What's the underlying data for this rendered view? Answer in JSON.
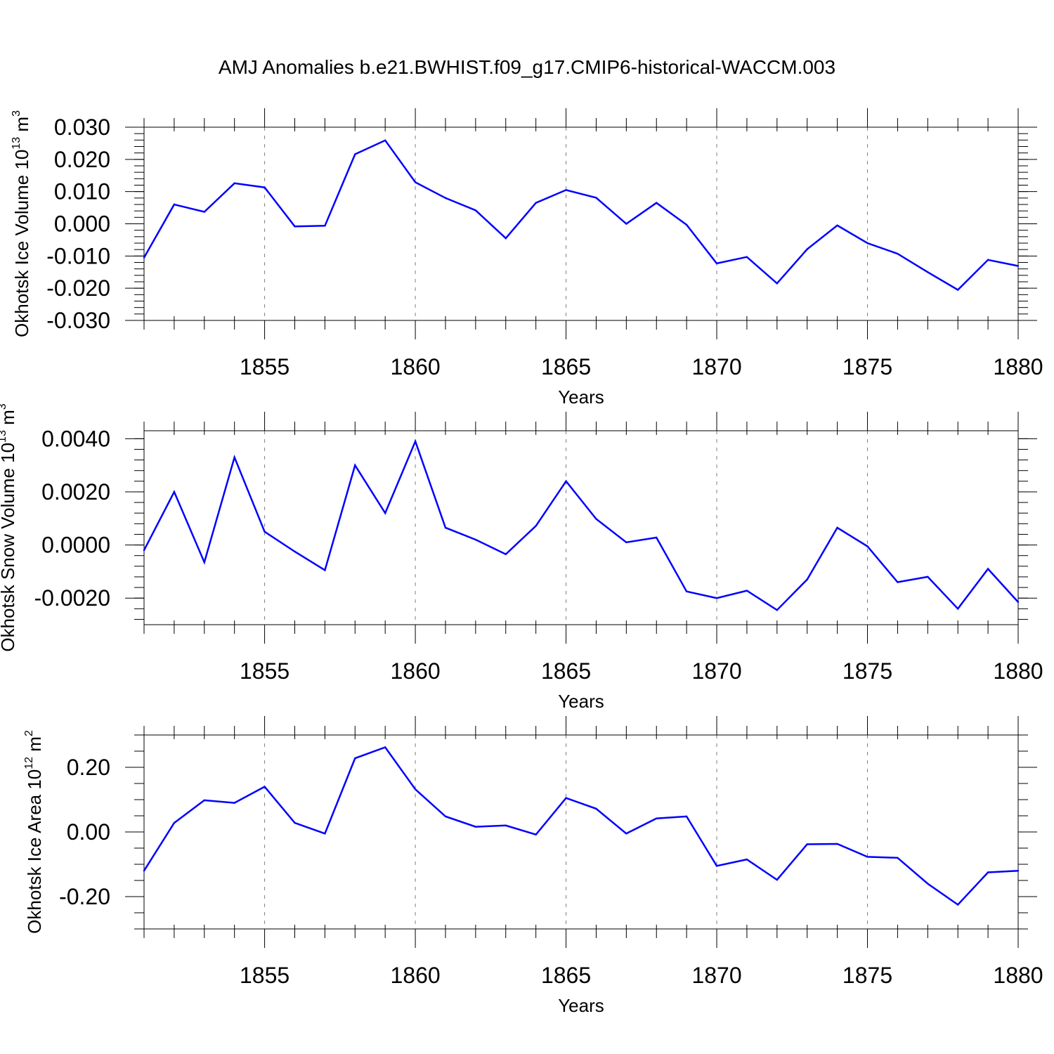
{
  "figure": {
    "title": "AMJ Anomalies b.e21.BWHIST.f09_g17.CMIP6-historical-WACCM.003"
  },
  "chart_data": [
    {
      "type": "line",
      "xlabel": "Years",
      "ylabel": {
        "main": "Okhotsk Ice Volume 10",
        "exp": "13",
        "unit": " m",
        "unit_exp": "3"
      },
      "xlim": [
        1851,
        1880
      ],
      "ylim": [
        -0.03,
        0.03
      ],
      "xticks": [
        1855,
        1860,
        1865,
        1870,
        1875,
        1880
      ],
      "xtick_labels": [
        "1855",
        "1860",
        "1865",
        "1870",
        "1875",
        "1880"
      ],
      "yticks": [
        0.03,
        0.02,
        0.01,
        0.0,
        -0.01,
        -0.02,
        -0.03
      ],
      "ytick_labels": [
        "0.030",
        "0.020",
        "0.010",
        "0.000",
        "-0.010",
        "-0.020",
        "-0.030"
      ],
      "minor_y_step": 0.002,
      "grid": "dashed vertical at major x ticks",
      "color": "#0000ff",
      "x": [
        1851,
        1852,
        1853,
        1854,
        1855,
        1856,
        1857,
        1858,
        1859,
        1860,
        1861,
        1862,
        1863,
        1864,
        1865,
        1866,
        1867,
        1868,
        1869,
        1870,
        1871,
        1872,
        1873,
        1874,
        1875,
        1876,
        1877,
        1878,
        1879,
        1880
      ],
      "values": [
        -0.0105,
        0.006,
        0.0037,
        0.0126,
        0.0113,
        -0.0008,
        -0.0006,
        0.0216,
        0.0259,
        0.0129,
        0.008,
        0.0042,
        -0.0045,
        0.0065,
        0.0105,
        0.0081,
        0.0,
        0.0065,
        -0.0003,
        -0.0123,
        -0.0103,
        -0.0185,
        -0.0079,
        -0.0005,
        -0.006,
        -0.0093,
        -0.015,
        -0.0205,
        -0.0112,
        -0.0131
      ]
    },
    {
      "type": "line",
      "xlabel": "Years",
      "ylabel": {
        "main": "Okhotsk Snow Volume 10",
        "exp": "13",
        "unit": " m",
        "unit_exp": "3"
      },
      "xlim": [
        1851,
        1880
      ],
      "ylim": [
        -0.003,
        0.0043
      ],
      "xticks": [
        1855,
        1860,
        1865,
        1870,
        1875,
        1880
      ],
      "xtick_labels": [
        "1855",
        "1860",
        "1865",
        "1870",
        "1875",
        "1880"
      ],
      "yticks": [
        0.004,
        0.002,
        0.0,
        -0.002
      ],
      "ytick_labels": [
        "0.0040",
        "0.0020",
        "0.0000",
        "-0.0020"
      ],
      "minor_y_step": 0.0004,
      "grid": "dashed vertical at major x ticks",
      "color": "#0000ff",
      "x": [
        1851,
        1852,
        1853,
        1854,
        1855,
        1856,
        1857,
        1858,
        1859,
        1860,
        1861,
        1862,
        1863,
        1864,
        1865,
        1866,
        1867,
        1868,
        1869,
        1870,
        1871,
        1872,
        1873,
        1874,
        1875,
        1876,
        1877,
        1878,
        1879,
        1880
      ],
      "values": [
        -0.0002,
        0.002,
        -0.00065,
        0.0033,
        0.0005,
        -0.00025,
        -0.00095,
        0.003,
        0.0012,
        0.0039,
        0.00065,
        0.0002,
        -0.00035,
        0.00072,
        0.0024,
        0.00098,
        0.0001,
        0.00028,
        -0.00175,
        -0.002,
        -0.00172,
        -0.00245,
        -0.0013,
        0.00065,
        -5e-05,
        -0.0014,
        -0.0012,
        -0.0024,
        -0.0009,
        -0.00215
      ]
    },
    {
      "type": "line",
      "xlabel": "Years",
      "ylabel": {
        "main": "Okhotsk Ice Area 10",
        "exp": "12",
        "unit": " m",
        "unit_exp": "2"
      },
      "xlim": [
        1851,
        1880
      ],
      "ylim": [
        -0.3,
        0.3
      ],
      "xticks": [
        1855,
        1860,
        1865,
        1870,
        1875,
        1880
      ],
      "xtick_labels": [
        "1855",
        "1860",
        "1865",
        "1870",
        "1875",
        "1880"
      ],
      "yticks": [
        0.2,
        0.0,
        -0.2
      ],
      "ytick_labels": [
        "0.20",
        "0.00",
        "-0.20"
      ],
      "minor_y_step": 0.05,
      "grid": "dashed vertical at major x ticks",
      "color": "#0000ff",
      "x": [
        1851,
        1852,
        1853,
        1854,
        1855,
        1856,
        1857,
        1858,
        1859,
        1860,
        1861,
        1862,
        1863,
        1864,
        1865,
        1866,
        1867,
        1868,
        1869,
        1870,
        1871,
        1872,
        1873,
        1874,
        1875,
        1876,
        1877,
        1878,
        1879,
        1880
      ],
      "values": [
        -0.12,
        0.028,
        0.098,
        0.09,
        0.14,
        0.028,
        -0.005,
        0.228,
        0.262,
        0.132,
        0.048,
        0.016,
        0.02,
        -0.008,
        0.105,
        0.072,
        -0.005,
        0.042,
        0.048,
        -0.105,
        -0.085,
        -0.148,
        -0.038,
        -0.037,
        -0.077,
        -0.08,
        -0.16,
        -0.225,
        -0.125,
        -0.12
      ]
    }
  ]
}
